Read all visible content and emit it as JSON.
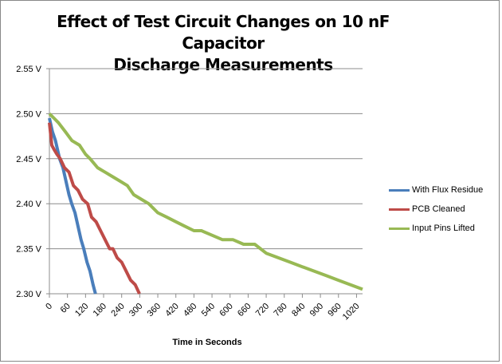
{
  "chart_data": {
    "type": "line",
    "title": "Effect of Test Circuit Changes on 10 nF Capacitor Discharge Measurements",
    "title_lines": [
      "Effect of Test Circuit Changes on 10 nF Capacitor",
      "Discharge Measurements"
    ],
    "xlabel": "Time in Seconds",
    "ylabel": "",
    "xlim": [
      0,
      1040
    ],
    "ylim": [
      2.3,
      2.55
    ],
    "x_ticks": [
      0,
      60,
      120,
      180,
      240,
      300,
      360,
      420,
      480,
      540,
      600,
      660,
      720,
      780,
      840,
      900,
      960,
      1020
    ],
    "y_ticks": [
      2.3,
      2.35,
      2.4,
      2.45,
      2.5,
      2.55
    ],
    "y_tick_labels": [
      "2.30 V",
      "2.35 V",
      "2.40 V",
      "2.45 V",
      "2.50 V",
      "2.55 V"
    ],
    "grid": "horizontal",
    "legend_position": "right",
    "series": [
      {
        "name": "With Flux Residue",
        "color": "#4a7ebb",
        "x": [
          0,
          10,
          20,
          34,
          45,
          55,
          65,
          74,
          85,
          95,
          105,
          114,
          125,
          135,
          145,
          153
        ],
        "y": [
          2.495,
          2.48,
          2.47,
          2.45,
          2.44,
          2.425,
          2.41,
          2.4,
          2.39,
          2.375,
          2.36,
          2.35,
          2.335,
          2.325,
          2.31,
          2.3
        ]
      },
      {
        "name": "PCB Cleaned",
        "color": "#be4b48",
        "x": [
          0,
          8,
          16,
          25,
          36,
          50,
          65,
          80,
          95,
          110,
          127,
          140,
          155,
          170,
          185,
          200,
          211,
          225,
          240,
          255,
          270,
          285,
          299
        ],
        "y": [
          2.49,
          2.465,
          2.46,
          2.455,
          2.45,
          2.44,
          2.435,
          2.42,
          2.415,
          2.405,
          2.4,
          2.385,
          2.38,
          2.37,
          2.36,
          2.35,
          2.35,
          2.34,
          2.335,
          2.325,
          2.315,
          2.31,
          2.3
        ]
      },
      {
        "name": "Input Pins Lifted",
        "color": "#98b954",
        "x": [
          0,
          15,
          30,
          53,
          75,
          100,
          120,
          135,
          160,
          185,
          210,
          235,
          259,
          280,
          305,
          330,
          360,
          390,
          420,
          450,
          480,
          505,
          540,
          575,
          610,
          645,
          682,
          720,
          760,
          800,
          840,
          880,
          920,
          960,
          1000,
          1040
        ],
        "y": [
          2.5,
          2.495,
          2.49,
          2.48,
          2.47,
          2.465,
          2.455,
          2.45,
          2.44,
          2.435,
          2.43,
          2.425,
          2.42,
          2.41,
          2.405,
          2.4,
          2.39,
          2.385,
          2.38,
          2.375,
          2.37,
          2.37,
          2.365,
          2.36,
          2.36,
          2.355,
          2.355,
          2.345,
          2.34,
          2.335,
          2.33,
          2.325,
          2.32,
          2.315,
          2.31,
          2.305
        ]
      }
    ]
  }
}
